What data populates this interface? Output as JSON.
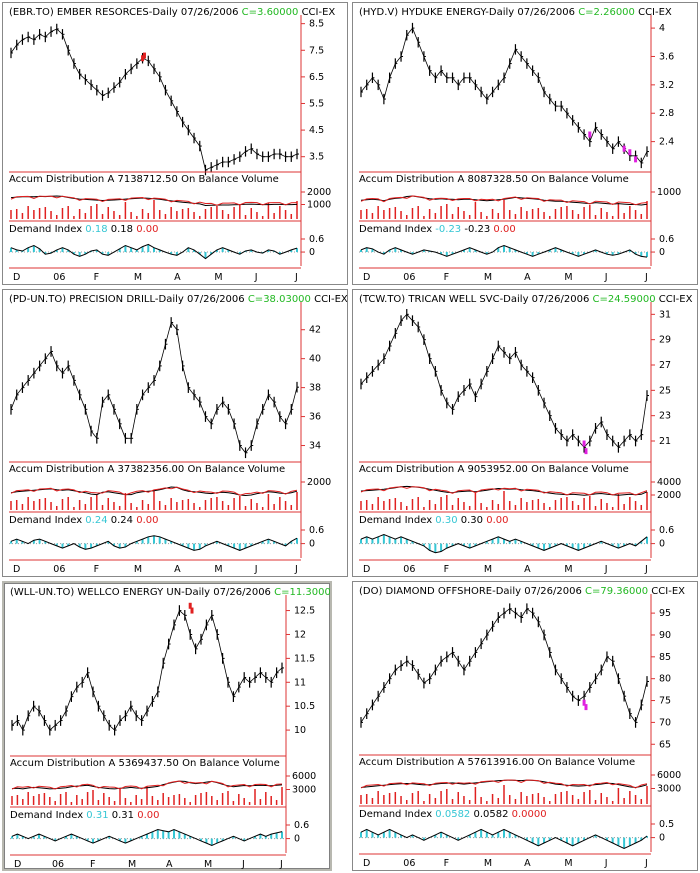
{
  "chart_data": [
    {
      "type": "line",
      "ticker": "(EBR.TO) EMBER RESORCES",
      "period": "-Daily",
      "date": "07/26/2006",
      "close_label": "C=3.60000",
      "indicator": "CCI-EX",
      "price_ticks": [
        "8.5",
        "7.5",
        "6.5",
        "5.5",
        "4.5",
        "3.5"
      ],
      "price_range": [
        3.0,
        8.6
      ],
      "price_x": [
        0,
        3,
        6,
        9,
        12,
        15,
        18,
        21,
        24,
        27,
        30,
        33,
        36,
        39,
        42,
        45,
        48,
        51,
        54,
        57,
        60,
        63,
        66,
        69,
        72,
        75,
        78,
        81,
        84,
        87,
        90,
        93,
        96,
        99,
        102,
        105,
        108,
        111,
        114,
        117,
        120,
        123,
        126,
        129,
        132,
        135,
        138,
        141,
        144,
        147,
        150
      ],
      "price": [
        7.4,
        7.7,
        7.9,
        8.0,
        7.9,
        8.1,
        8.0,
        8.2,
        8.3,
        8.1,
        7.5,
        7.0,
        6.6,
        6.4,
        6.2,
        6.0,
        5.8,
        5.9,
        6.1,
        6.3,
        6.6,
        6.8,
        7.0,
        7.2,
        7.1,
        6.8,
        6.5,
        6.0,
        5.6,
        5.2,
        4.8,
        4.5,
        4.2,
        3.9,
        3.0,
        3.1,
        3.2,
        3.3,
        3.3,
        3.4,
        3.5,
        3.7,
        3.8,
        3.6,
        3.5,
        3.5,
        3.6,
        3.6,
        3.5,
        3.5,
        3.6
      ],
      "marker": {
        "x": [
          69,
          70
        ],
        "y": [
          7.2,
          7.3
        ],
        "color": "#e02020"
      },
      "ad_label": "Accum Distribution A",
      "ad_value": "7138712.50",
      "obv_label": "On Balance Volume",
      "ad_ticks": [
        "2000",
        "1000"
      ],
      "di_label": "Demand Index",
      "di_v1": "0.18",
      "di_v2": "0.18",
      "di_v3": "0.00",
      "di_ticks": [
        "0.6",
        "0"
      ],
      "di_y": [
        0.2,
        0.1,
        0.05,
        0.2,
        0.3,
        0.15,
        -0.1,
        -0.05,
        0.1,
        0.2,
        0.1,
        -0.1,
        -0.2,
        -0.1,
        0.05,
        0.1,
        -0.1,
        -0.15,
        0.0,
        0.15,
        0.3,
        0.2,
        0.1,
        0.25,
        0.35,
        0.2,
        0.1,
        0.0,
        -0.1,
        -0.15,
        0.0,
        0.2,
        0.1,
        -0.1,
        -0.3,
        -0.1,
        0.1,
        0.2,
        0.1,
        0.0,
        -0.1,
        0.05,
        0.1,
        0.0,
        -0.05,
        0.1,
        0.05,
        -0.1,
        0.0,
        0.1,
        0.18
      ],
      "months": [
        "D",
        "06",
        "F",
        "M",
        "A",
        "M",
        "J",
        "J"
      ]
    },
    {
      "type": "line",
      "ticker": "(HYD.V) HYDUKE ENERGY",
      "period": "-Daily",
      "date": "07/26/2006",
      "close_label": "C=2.26000",
      "indicator": "CCI-EX",
      "price_ticks": [
        "4",
        "3.6",
        "3.2",
        "2.8",
        "2.4"
      ],
      "price_range": [
        2.0,
        4.1
      ],
      "price_x": [
        0,
        3,
        6,
        9,
        12,
        15,
        18,
        21,
        24,
        27,
        30,
        33,
        36,
        39,
        42,
        45,
        48,
        51,
        54,
        57,
        60,
        63,
        66,
        69,
        72,
        75,
        78,
        81,
        84,
        87,
        90,
        93,
        96,
        99,
        102,
        105,
        108,
        111,
        114,
        117,
        120,
        123,
        126,
        129,
        132,
        135,
        138,
        141,
        144,
        147,
        150
      ],
      "price": [
        3.1,
        3.2,
        3.3,
        3.2,
        3.0,
        3.3,
        3.5,
        3.6,
        3.9,
        4.0,
        3.8,
        3.6,
        3.4,
        3.3,
        3.4,
        3.3,
        3.3,
        3.2,
        3.3,
        3.3,
        3.2,
        3.1,
        3.0,
        3.1,
        3.2,
        3.3,
        3.5,
        3.7,
        3.6,
        3.5,
        3.4,
        3.3,
        3.1,
        3.0,
        2.9,
        2.9,
        2.8,
        2.7,
        2.6,
        2.5,
        2.4,
        2.6,
        2.5,
        2.4,
        2.3,
        2.4,
        2.3,
        2.2,
        2.2,
        2.1,
        2.26
      ],
      "marker": {
        "x": [
          120,
          138,
          141,
          144
        ],
        "y": [
          2.5,
          2.3,
          2.25,
          2.15
        ],
        "color": "#e020e0"
      },
      "ad_label": "Accum Distribution A",
      "ad_value": "8087328.50",
      "obv_label": "On Balance Volume",
      "ad_ticks": [
        "1000"
      ],
      "di_label": "Demand Index",
      "di_v1": "-0.23",
      "di_v2": "-0.23",
      "di_v3": "0.00",
      "di_ticks": [
        "0.6",
        "0"
      ],
      "di_y": [
        0.1,
        0.2,
        0.15,
        0.0,
        -0.1,
        0.1,
        0.2,
        0.1,
        0.0,
        -0.1,
        0.0,
        0.1,
        0.05,
        0.0,
        -0.1,
        -0.2,
        -0.1,
        0.0,
        0.1,
        0.2,
        0.1,
        0.0,
        -0.1,
        0.0,
        0.2,
        0.3,
        0.2,
        0.1,
        0.0,
        -0.1,
        -0.2,
        -0.1,
        0.0,
        0.1,
        0.2,
        0.1,
        0.0,
        -0.1,
        -0.2,
        -0.1,
        0.0,
        0.1,
        0.0,
        -0.1,
        -0.15,
        -0.1,
        0.0,
        0.1,
        -0.1,
        -0.2,
        -0.23
      ],
      "months": [
        "D",
        "06",
        "F",
        "M",
        "A",
        "M",
        "J",
        "J"
      ]
    },
    {
      "type": "line",
      "ticker": "(PD-UN.TO) PRECISION DRILL",
      "period": "-Daily",
      "date": "07/26/2006",
      "close_label": "C=38.03000",
      "indicator": "CCI-EX",
      "price_ticks": [
        "42",
        "40",
        "38",
        "36",
        "34"
      ],
      "price_range": [
        33.0,
        43.5
      ],
      "price_x": [
        0,
        3,
        6,
        9,
        12,
        15,
        18,
        21,
        24,
        27,
        30,
        33,
        36,
        39,
        42,
        45,
        48,
        51,
        54,
        57,
        60,
        63,
        66,
        69,
        72,
        75,
        78,
        81,
        84,
        87,
        90,
        93,
        96,
        99,
        102,
        105,
        108,
        111,
        114,
        117,
        120,
        123,
        126,
        129,
        132,
        135,
        138,
        141,
        144,
        147,
        150
      ],
      "price": [
        36.5,
        37.5,
        38.0,
        38.5,
        39.0,
        39.5,
        40.0,
        40.5,
        39.5,
        39.0,
        39.5,
        38.5,
        37.5,
        36.5,
        35.0,
        34.5,
        37.0,
        37.5,
        36.5,
        35.5,
        34.5,
        34.5,
        36.5,
        37.5,
        38.0,
        38.5,
        39.5,
        41.0,
        42.5,
        42.0,
        39.5,
        38.0,
        37.5,
        37.0,
        36.0,
        35.5,
        36.5,
        37.0,
        36.5,
        35.5,
        34.0,
        33.5,
        34.0,
        35.5,
        36.5,
        37.5,
        37.0,
        36.0,
        35.5,
        36.5,
        38.03
      ],
      "marker": null,
      "ad_label": "Accum Distribution A",
      "ad_value": "37382356.00",
      "obv_label": "On Balance Volume",
      "ad_ticks": [
        "2000"
      ],
      "di_label": "Demand Index",
      "di_v1": "0.24",
      "di_v2": "0.24",
      "di_v3": "0.00",
      "di_ticks": [
        "0.6",
        "0"
      ],
      "di_y": [
        0.1,
        0.2,
        0.1,
        0.0,
        0.15,
        0.2,
        0.1,
        0.0,
        -0.1,
        -0.2,
        -0.1,
        0.0,
        -0.15,
        -0.25,
        -0.2,
        -0.1,
        0.0,
        0.1,
        -0.1,
        -0.2,
        -0.15,
        0.0,
        0.1,
        0.2,
        0.3,
        0.35,
        0.3,
        0.2,
        0.1,
        0.0,
        -0.1,
        -0.2,
        -0.3,
        -0.25,
        -0.1,
        0.0,
        0.1,
        0.0,
        -0.1,
        -0.2,
        -0.3,
        -0.2,
        -0.1,
        0.0,
        0.1,
        0.2,
        0.1,
        0.0,
        -0.1,
        0.1,
        0.24
      ],
      "months": [
        "D",
        "06",
        "F",
        "M",
        "A",
        "M",
        "J",
        "J"
      ]
    },
    {
      "type": "line",
      "ticker": "(TCW.TO) TRICAN WELL SVC",
      "period": "-Daily",
      "date": "07/26/2006",
      "close_label": "C=24.59000",
      "indicator": "CCI-EX",
      "price_ticks": [
        "31",
        "29",
        "27",
        "25",
        "23",
        "21"
      ],
      "price_range": [
        19.5,
        31.5
      ],
      "price_x": [
        0,
        3,
        6,
        9,
        12,
        15,
        18,
        21,
        24,
        27,
        30,
        33,
        36,
        39,
        42,
        45,
        48,
        51,
        54,
        57,
        60,
        63,
        66,
        69,
        72,
        75,
        78,
        81,
        84,
        87,
        90,
        93,
        96,
        99,
        102,
        105,
        108,
        111,
        114,
        117,
        120,
        123,
        126,
        129,
        132,
        135,
        138,
        141,
        144,
        147,
        150
      ],
      "price": [
        25.5,
        26.0,
        26.5,
        27.0,
        27.5,
        28.5,
        29.5,
        30.5,
        31.0,
        30.5,
        30.0,
        29.0,
        27.5,
        26.5,
        25.0,
        24.0,
        23.5,
        24.5,
        25.0,
        25.5,
        24.5,
        25.5,
        26.5,
        27.5,
        28.5,
        28.0,
        27.5,
        28.0,
        27.0,
        26.5,
        26.0,
        25.0,
        24.0,
        23.0,
        22.0,
        21.5,
        21.0,
        21.5,
        21.0,
        20.5,
        21.0,
        22.0,
        22.5,
        21.5,
        21.0,
        20.5,
        21.0,
        21.5,
        21.0,
        21.5,
        24.59
      ],
      "marker": {
        "x": [
          117,
          118
        ],
        "y": [
          20.8,
          20.2
        ],
        "color": "#e020e0"
      },
      "ad_label": "Accum Distribution A",
      "ad_value": "9053952.00",
      "obv_label": "On Balance Volume",
      "ad_ticks": [
        "4000",
        "2000"
      ],
      "di_label": "Demand Index",
      "di_v1": "0.30",
      "di_v2": "0.30",
      "di_v3": "0.00",
      "di_ticks": [
        "0.6",
        "0"
      ],
      "di_y": [
        0.2,
        0.3,
        0.2,
        0.3,
        0.4,
        0.3,
        0.2,
        0.3,
        0.2,
        0.1,
        0.0,
        -0.1,
        -0.3,
        -0.4,
        -0.35,
        -0.2,
        -0.1,
        0.0,
        -0.1,
        -0.2,
        -0.1,
        0.0,
        0.1,
        0.2,
        0.3,
        0.2,
        0.1,
        0.2,
        0.1,
        0.0,
        -0.1,
        -0.2,
        -0.3,
        -0.2,
        -0.1,
        0.0,
        -0.1,
        -0.2,
        -0.3,
        -0.2,
        -0.1,
        0.0,
        0.1,
        0.0,
        -0.1,
        -0.2,
        -0.1,
        0.0,
        -0.1,
        0.1,
        0.3
      ],
      "months": [
        "D",
        "06",
        "F",
        "M",
        "A",
        "M",
        "J",
        "J"
      ]
    },
    {
      "type": "line",
      "ticker": "(WLL-UN.TO) WELLCO ENERGY UN",
      "period": "-Daily",
      "date": "07/26/2006",
      "close_label": "C=11.30000",
      "indicator": "",
      "price_ticks": [
        "12.5",
        "12",
        "11.5",
        "11",
        "10.5",
        "10"
      ],
      "price_range": [
        9.5,
        12.7
      ],
      "price_x": [
        0,
        3,
        6,
        9,
        12,
        15,
        18,
        21,
        24,
        27,
        30,
        33,
        36,
        39,
        42,
        45,
        48,
        51,
        54,
        57,
        60,
        63,
        66,
        69,
        72,
        75,
        78,
        81,
        84,
        87,
        90,
        93,
        96,
        99,
        102,
        105,
        108,
        111,
        114,
        117,
        120,
        123,
        126,
        129,
        132,
        135,
        138,
        141,
        144,
        147,
        150
      ],
      "price": [
        10.1,
        10.2,
        10.0,
        10.3,
        10.5,
        10.4,
        10.2,
        10.0,
        10.1,
        10.2,
        10.4,
        10.7,
        10.9,
        11.0,
        11.2,
        10.8,
        10.5,
        10.3,
        10.1,
        10.0,
        10.2,
        10.3,
        10.5,
        10.3,
        10.2,
        10.4,
        10.6,
        10.8,
        11.4,
        11.8,
        12.2,
        12.5,
        12.4,
        12.0,
        11.7,
        11.9,
        12.2,
        12.4,
        12.0,
        11.5,
        11.0,
        10.7,
        10.9,
        11.1,
        11.0,
        11.1,
        11.2,
        11.1,
        11.0,
        11.2,
        11.3
      ],
      "marker": {
        "x": [
          99,
          100
        ],
        "y": [
          12.6,
          12.5
        ],
        "color": "#e02020"
      },
      "ad_label": "Accum Distribution A",
      "ad_value": "5369437.50",
      "obv_label": "On Balance Volume",
      "ad_ticks": [
        "6000",
        "3000"
      ],
      "di_label": "Demand Index",
      "di_v1": "0.31",
      "di_v2": "0.31",
      "di_v3": "0.00",
      "di_ticks": [
        "0.6",
        "0"
      ],
      "di_y": [
        0.1,
        0.2,
        0.1,
        0.0,
        0.1,
        0.2,
        0.1,
        0.0,
        -0.1,
        0.0,
        0.1,
        0.2,
        0.1,
        0.0,
        -0.1,
        -0.2,
        -0.1,
        0.0,
        0.1,
        0.0,
        -0.1,
        -0.2,
        -0.1,
        0.0,
        0.1,
        0.2,
        0.3,
        0.4,
        0.35,
        0.3,
        0.4,
        0.3,
        0.2,
        0.1,
        0.0,
        -0.1,
        -0.2,
        -0.3,
        -0.2,
        -0.1,
        0.0,
        0.1,
        0.0,
        -0.1,
        0.0,
        0.1,
        0.2,
        0.1,
        0.2,
        0.25,
        0.31
      ],
      "months": [
        "D",
        "06",
        "F",
        "M",
        "A",
        "M",
        "J",
        "J"
      ]
    },
    {
      "type": "line",
      "ticker": "(DO) DIAMOND OFFSHORE",
      "period": "-Daily",
      "date": "07/26/2006",
      "close_label": "C=79.36000",
      "indicator": "CCI-EX",
      "price_ticks": [
        "95",
        "90",
        "85",
        "80",
        "75",
        "70",
        "65"
      ],
      "price_range": [
        63.0,
        98.0
      ],
      "price_x": [
        0,
        3,
        6,
        9,
        12,
        15,
        18,
        21,
        24,
        27,
        30,
        33,
        36,
        39,
        42,
        45,
        48,
        51,
        54,
        57,
        60,
        63,
        66,
        69,
        72,
        75,
        78,
        81,
        84,
        87,
        90,
        93,
        96,
        99,
        102,
        105,
        108,
        111,
        114,
        117,
        120,
        123,
        126,
        129,
        132,
        135,
        138,
        141,
        144,
        147,
        150
      ],
      "price": [
        70,
        72,
        74,
        76,
        78,
        80,
        82,
        83,
        84,
        83,
        81,
        79,
        80,
        82,
        84,
        85,
        86,
        84,
        82,
        84,
        86,
        88,
        90,
        92,
        94,
        95,
        96,
        95,
        94,
        96,
        95,
        93,
        90,
        86,
        82,
        80,
        78,
        76,
        75,
        76,
        78,
        80,
        82,
        85,
        84,
        80,
        76,
        72,
        70,
        74,
        79.36
      ],
      "marker": {
        "x": [
          117,
          118
        ],
        "y": [
          74.5,
          73.5
        ],
        "color": "#e020e0"
      },
      "ad_label": "Accum Distribution A",
      "ad_value": "57613916.00",
      "obv_label": "On Balance Volume",
      "ad_ticks": [
        "6000",
        "3000"
      ],
      "di_label": "Demand Index",
      "di_v1": "0.0582",
      "di_v2": "0.0582",
      "di_v3": "0.0000",
      "di_ticks": [
        "0.5",
        "0"
      ],
      "di_y": [
        0.2,
        0.3,
        0.2,
        0.1,
        0.2,
        0.3,
        0.2,
        0.1,
        0.0,
        0.1,
        0.0,
        -0.1,
        0.0,
        0.1,
        0.2,
        0.1,
        0.0,
        -0.1,
        0.0,
        0.1,
        0.2,
        0.3,
        0.2,
        0.1,
        0.2,
        0.3,
        0.2,
        0.1,
        0.0,
        -0.1,
        -0.2,
        -0.3,
        -0.2,
        -0.1,
        0.0,
        -0.1,
        -0.2,
        -0.3,
        -0.2,
        -0.1,
        0.0,
        0.1,
        0.0,
        -0.1,
        -0.2,
        -0.3,
        -0.4,
        -0.3,
        -0.2,
        -0.1,
        0.06
      ],
      "months": [
        "D",
        "06",
        "F",
        "M",
        "A",
        "M",
        "J",
        "J"
      ]
    }
  ]
}
